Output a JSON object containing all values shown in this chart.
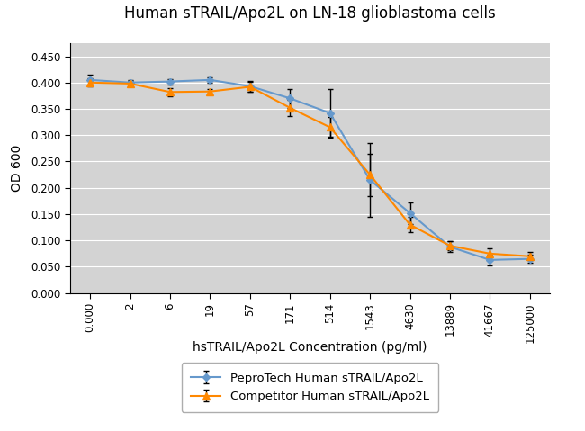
{
  "title": "Human sTRAIL/Apo2L on LN-18 glioblastoma cells",
  "xlabel": "hsTRAIL/Apo2L Concentration (pg/ml)",
  "ylabel": "OD 600",
  "x_labels": [
    "0.000",
    "2",
    "6",
    "19",
    "57",
    "171",
    "514",
    "1543",
    "4630",
    "13889",
    "41667",
    "125000"
  ],
  "peprotech_y": [
    0.405,
    0.4,
    0.402,
    0.405,
    0.393,
    0.37,
    0.342,
    0.215,
    0.152,
    0.088,
    0.063,
    0.065
  ],
  "peprotech_yerr": [
    0.01,
    0.005,
    0.005,
    0.005,
    0.01,
    0.018,
    0.045,
    0.07,
    0.02,
    0.01,
    0.01,
    0.008
  ],
  "competitor_y": [
    0.4,
    0.398,
    0.382,
    0.383,
    0.392,
    0.352,
    0.315,
    0.225,
    0.13,
    0.09,
    0.075,
    0.07
  ],
  "competitor_yerr": [
    0.008,
    0.005,
    0.008,
    0.005,
    0.01,
    0.015,
    0.02,
    0.04,
    0.015,
    0.008,
    0.01,
    0.008
  ],
  "peprotech_color": "#6699CC",
  "competitor_color": "#FF8800",
  "fig_bg_color": "#FFFFFF",
  "plot_bg_color": "#D3D3D3",
  "ylim": [
    0.0,
    0.475
  ],
  "yticks": [
    0.0,
    0.05,
    0.1,
    0.15,
    0.2,
    0.25,
    0.3,
    0.35,
    0.4,
    0.45
  ],
  "legend_labels": [
    "PeproTech Human sTRAIL/Apo2L",
    "Competitor Human sTRAIL/Apo2L"
  ],
  "title_fontsize": 12,
  "label_fontsize": 10,
  "tick_fontsize": 8.5,
  "legend_fontsize": 9.5
}
